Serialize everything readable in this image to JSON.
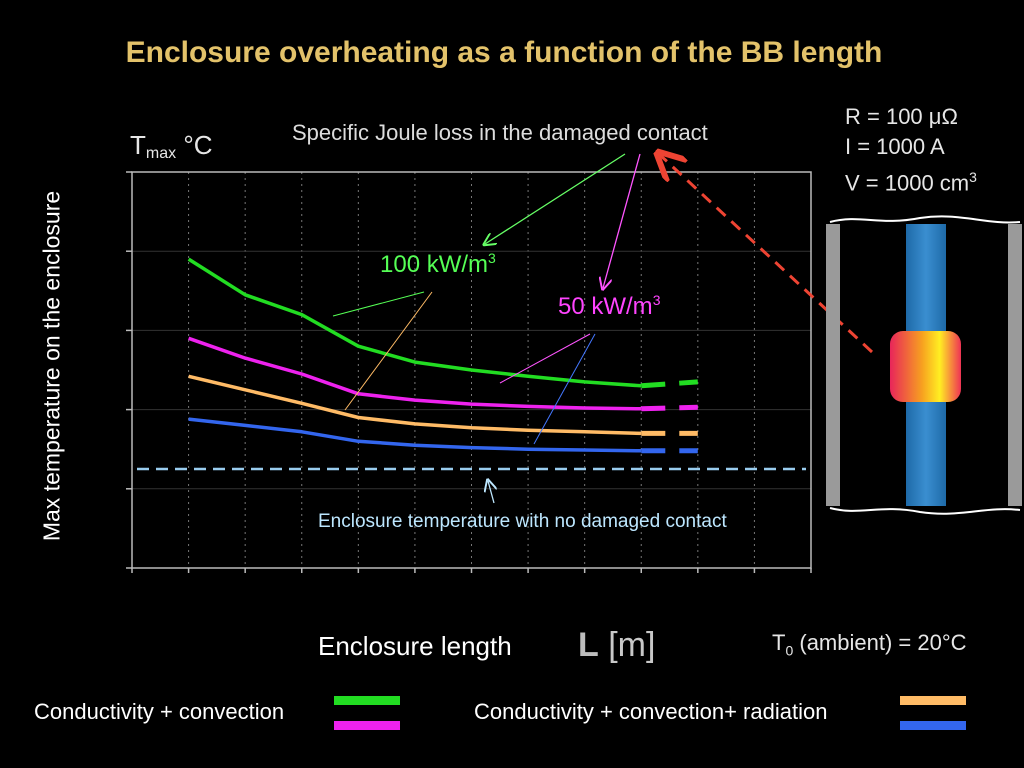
{
  "title": "Enclosure overheating as a function of the BB length",
  "params": {
    "resistance": "R = 100 μΩ",
    "current": "I  = 1000 A",
    "volume_prefix": "V = 1000 cm",
    "volume_exp": "3"
  },
  "ambient": {
    "prefix": "T",
    "sub": "0",
    "rest": " (ambient) = 20°C"
  },
  "colors": {
    "title": "#e3c26a",
    "green": "#22dd22",
    "magenta": "#ee22ee",
    "orange": "#ffbb66",
    "blue": "#3366ee",
    "baseline": "#99ccee",
    "red_arrow": "#ee4433"
  },
  "chart_data": {
    "type": "line",
    "xlabel": "Enclosure length",
    "xvar": "L",
    "xunit": "[m]",
    "ylabel": "Max temperature on the enclosure",
    "yunit_prefix": "T",
    "yunit_sub": "max",
    "yunit_suffix": "°C",
    "xlim": [
      0,
      12
    ],
    "ylim": [
      0,
      5
    ],
    "grid": true,
    "x": [
      1,
      2,
      3,
      4,
      5,
      6,
      7,
      8,
      9,
      10
    ],
    "series": [
      {
        "group": "Conductivity + convection",
        "specific_loss": "100 kW/m3",
        "color": "#22dd22",
        "values": [
          3.9,
          3.45,
          3.2,
          2.8,
          2.6,
          2.5,
          2.42,
          2.35,
          2.3,
          2.35
        ]
      },
      {
        "group": "Conductivity + convection",
        "specific_loss": "50 kW/m3",
        "color": "#ee22ee",
        "values": [
          2.9,
          2.65,
          2.45,
          2.2,
          2.12,
          2.07,
          2.04,
          2.02,
          2.01,
          2.03
        ]
      },
      {
        "group": "Conductivity + convection+  radiation",
        "specific_loss": "100 kW/m3",
        "color": "#ffbb66",
        "values": [
          2.42,
          2.25,
          2.08,
          1.9,
          1.82,
          1.77,
          1.74,
          1.72,
          1.7,
          1.7
        ]
      },
      {
        "group": "Conductivity + convection+  radiation",
        "specific_loss": "50 kW/m3",
        "color": "#3366ee",
        "values": [
          1.88,
          1.8,
          1.72,
          1.6,
          1.55,
          1.52,
          1.5,
          1.49,
          1.48,
          1.48
        ]
      }
    ],
    "solid_until_x": 9,
    "dashed_from_x": 9,
    "baseline": {
      "label": "Enclosure temperature with no damaged contact",
      "y": 1.25
    },
    "annotations": {
      "joule": "Specific Joule loss in the damaged contact",
      "label_100_prefix": "100 kW/m",
      "label_100_exp": "3",
      "label_50_prefix": "50 kW/m",
      "label_50_exp": "3"
    }
  },
  "legend": {
    "left": "Conductivity + convection",
    "right": "Conductivity + convection+  radiation"
  }
}
